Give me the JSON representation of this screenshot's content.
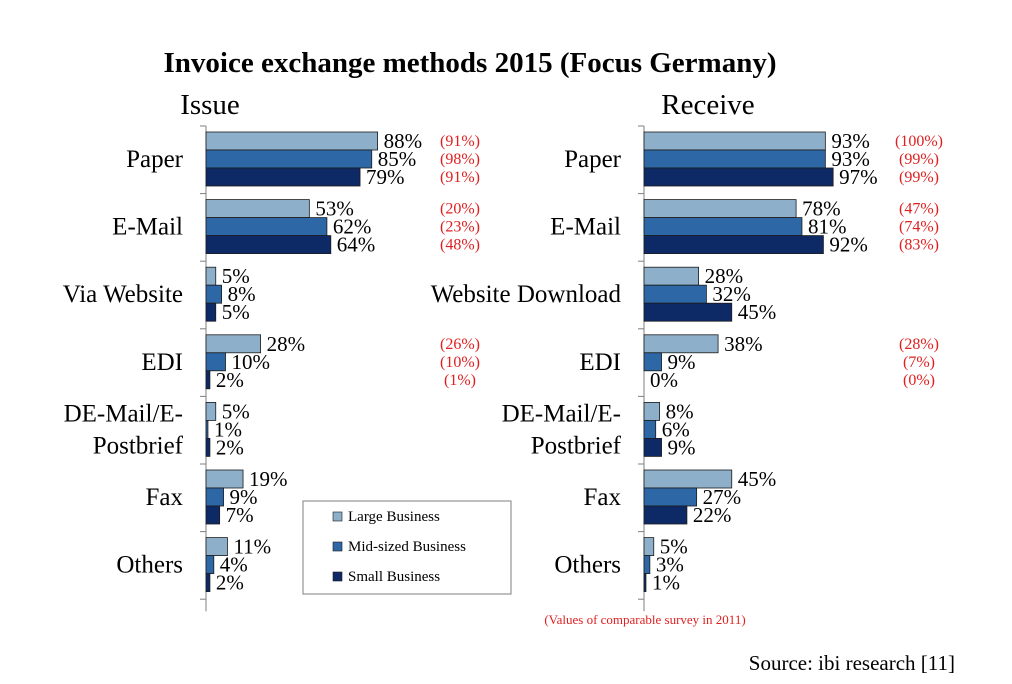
{
  "chart_data": {
    "type": "bar",
    "orientation": "horizontal",
    "title": "Invoice exchange methods 2015 (Focus Germany)",
    "colors": {
      "large": "#8DAFCA",
      "mid": "#2E67A6",
      "small": "#0E2A66",
      "previous_values": "#E02020"
    },
    "legend": {
      "position": "bottom-center",
      "entries": [
        "Large Business",
        "Mid-sized Business",
        "Small Business"
      ]
    },
    "footnote": "(Values of comparable survey in 2011)",
    "source": "Source: ibi research [11]",
    "panels": [
      {
        "label": "Issue",
        "xlim": [
          0,
          100
        ],
        "categories": [
          "Paper",
          "E-Mail",
          "Via Website",
          "EDI",
          "DE-Mail/E-Postbrief",
          "Fax",
          "Others"
        ],
        "category_lines": [
          [
            "Paper"
          ],
          [
            "E-Mail"
          ],
          [
            "Via Website"
          ],
          [
            "EDI"
          ],
          [
            "DE-Mail/E-",
            "Postbrief"
          ],
          [
            "Fax"
          ],
          [
            "Others"
          ]
        ],
        "series": [
          {
            "name": "Large Business",
            "values": [
              88,
              53,
              5,
              28,
              5,
              19,
              11
            ],
            "labels": [
              "88%",
              "53%",
              "5%",
              "28%",
              "5%",
              "19%",
              "11%"
            ]
          },
          {
            "name": "Mid-sized Business",
            "values": [
              85,
              62,
              8,
              10,
              1,
              9,
              4
            ],
            "labels": [
              "85%",
              "62%",
              "8%",
              "10%",
              "1%",
              "9%",
              "4%"
            ]
          },
          {
            "name": "Small Business",
            "values": [
              79,
              64,
              5,
              2,
              2,
              7,
              2
            ],
            "labels": [
              "79%",
              "64%",
              "5%",
              "2%",
              "2%",
              "7%",
              "2%"
            ]
          }
        ],
        "previous_2011": {
          "Paper": [
            "(91%)",
            "(98%)",
            "(91%)"
          ],
          "E-Mail": [
            "(20%)",
            "(23%)",
            "(48%)"
          ],
          "EDI": [
            "(26%)",
            "(10%)",
            "(1%)"
          ]
        }
      },
      {
        "label": "Receive",
        "xlim": [
          0,
          100
        ],
        "categories": [
          "Paper",
          "E-Mail",
          "Website Download",
          "EDI",
          "DE-Mail/E-Postbrief",
          "Fax",
          "Others"
        ],
        "category_lines": [
          [
            "Paper"
          ],
          [
            "E-Mail"
          ],
          [
            "Website Download"
          ],
          [
            "EDI"
          ],
          [
            "DE-Mail/E-",
            "Postbrief"
          ],
          [
            "Fax"
          ],
          [
            "Others"
          ]
        ],
        "series": [
          {
            "name": "Large Business",
            "values": [
              93,
              78,
              28,
              38,
              8,
              45,
              5
            ],
            "labels": [
              "93%",
              "78%",
              "28%",
              "38%",
              "8%",
              "45%",
              "5%"
            ]
          },
          {
            "name": "Mid-sized Business",
            "values": [
              93,
              81,
              32,
              9,
              6,
              27,
              3
            ],
            "labels": [
              "93%",
              "81%",
              "32%",
              "9%",
              "6%",
              "27%",
              "3%"
            ]
          },
          {
            "name": "Small Business",
            "values": [
              97,
              92,
              45,
              0,
              9,
              22,
              1
            ],
            "labels": [
              "97%",
              "92%",
              "45%",
              "0%",
              "9%",
              "22%",
              "1%"
            ]
          }
        ],
        "previous_2011": {
          "Paper": [
            "(100%)",
            "(99%)",
            "(99%)"
          ],
          "E-Mail": [
            "(47%)",
            "(74%)",
            "(83%)"
          ],
          "EDI": [
            "(28%)",
            "(7%)",
            "(0%)"
          ]
        }
      }
    ]
  }
}
